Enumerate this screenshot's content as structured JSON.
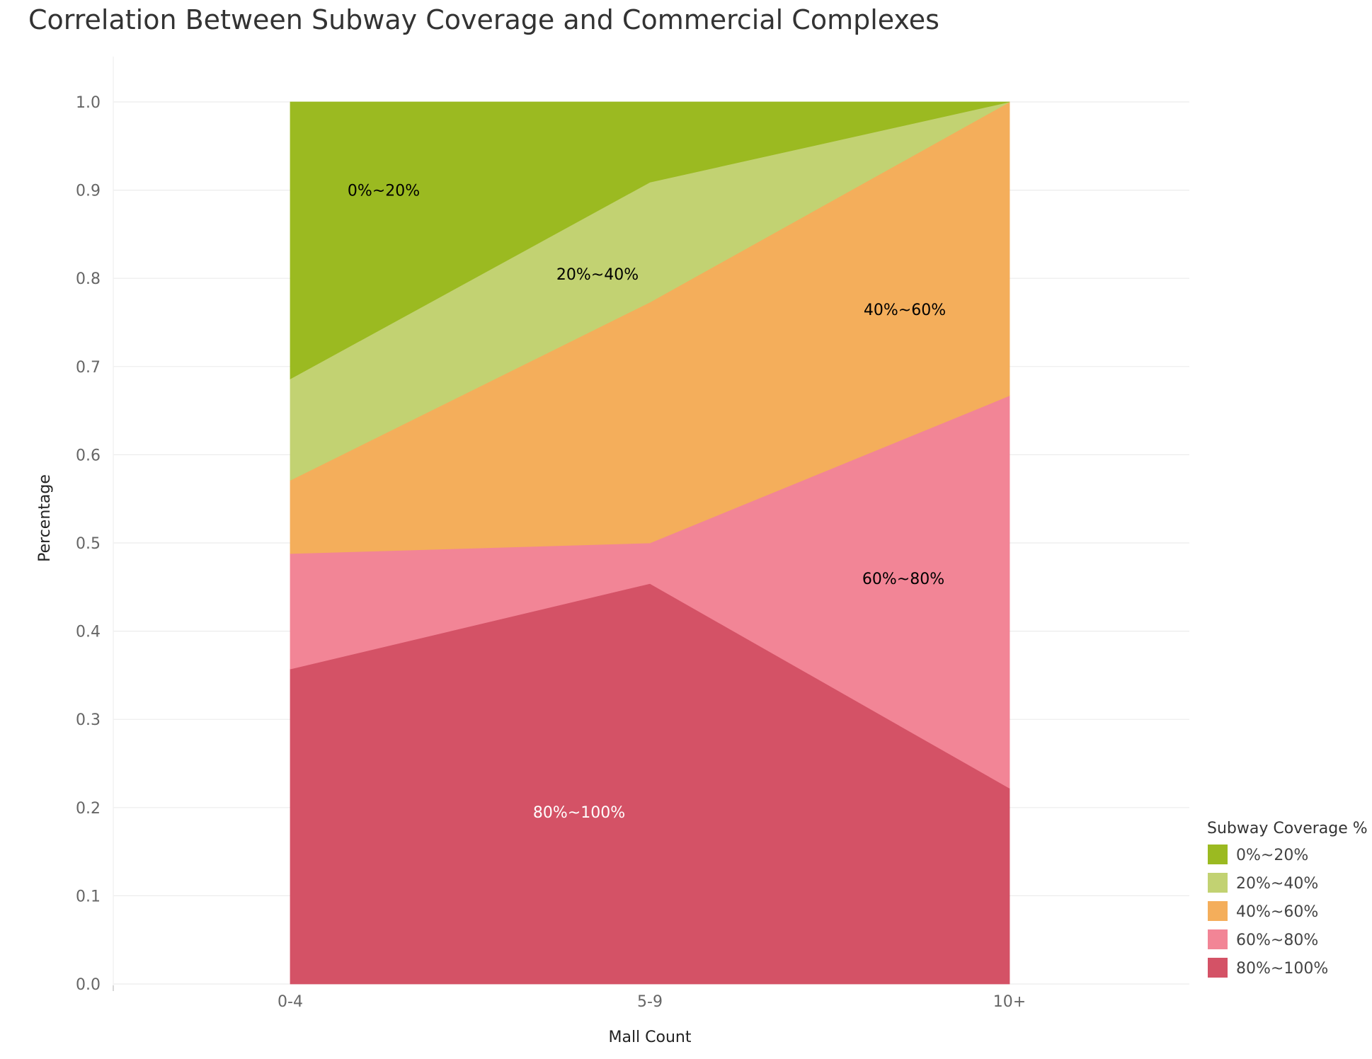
{
  "chart_data": {
    "type": "area",
    "stacked": "percent",
    "title": "Correlation Between Subway Coverage and Commercial Complexes",
    "xlabel": "Mall Count",
    "ylabel": "Percentage",
    "categories": [
      "0-4",
      "5-9",
      "10+"
    ],
    "ylim": [
      0,
      1
    ],
    "yticks": [
      "0.0",
      "0.1",
      "0.2",
      "0.3",
      "0.4",
      "0.5",
      "0.6",
      "0.7",
      "0.8",
      "0.9",
      "1.0"
    ],
    "grid": true,
    "legend": {
      "title": "Subway Coverage %",
      "position": "bottom-right"
    },
    "series": [
      {
        "name": "80%~100%",
        "values": [
          0.357,
          0.454,
          0.222
        ],
        "color": "#d45266",
        "label_color": "#ffffff"
      },
      {
        "name": "60%~80%",
        "values": [
          0.131,
          0.046,
          0.445
        ],
        "color": "#f28596",
        "label_color": "#000000"
      },
      {
        "name": "40%~60%",
        "values": [
          0.083,
          0.273,
          0.333
        ],
        "color": "#f4ae5b",
        "label_color": "#000000"
      },
      {
        "name": "20%~40%",
        "values": [
          0.115,
          0.136,
          0.0
        ],
        "color": "#c2d272",
        "label_color": "#000000"
      },
      {
        "name": "0%~20%",
        "values": [
          0.314,
          0.091,
          0.0
        ],
        "color": "#9bba21",
        "label_color": "#000000"
      }
    ]
  }
}
